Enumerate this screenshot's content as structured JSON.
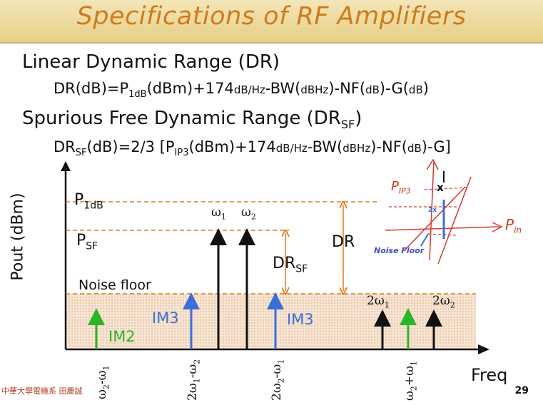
{
  "title": "Specifications of RF Amplifiers",
  "section1": {
    "heading": "Linear Dynamic Range (DR)",
    "eq_lhs": "DR(dB)",
    "eq_eq": "=P",
    "eq_sub": "1dB",
    "eq_rest1": "(dBm)+174",
    "eq_unit1": "dB/Hz",
    "eq_rest2": "-BW(",
    "eq_unit2": "dBHz",
    "eq_rest3": ")-NF(",
    "eq_unit3": "dB",
    "eq_rest4": ")-G(",
    "eq_unit4": "dB",
    "eq_end": ")"
  },
  "section2": {
    "heading_main": "Spurious Free Dynamic Range (DR",
    "heading_sub": "SF",
    "heading_end": ")",
    "eq_lhs": "DR",
    "eq_lhs_sub": "SF",
    "eq_a": "(dB)=2/3 [P",
    "eq_sub": "IP3",
    "eq_b": "(dBm)+174",
    "eq_unit1": "dB/Hz",
    "eq_c": "-BW(",
    "eq_unit2": "dBHz",
    "eq_d": ")-NF(",
    "eq_unit3": "dB",
    "eq_e": ")-G]"
  },
  "diagram": {
    "ylabel": "Pout (dBm)",
    "xlabel": "Freq",
    "p1db": "P",
    "p1db_sub": "1dB",
    "psf": "P",
    "psf_sub": "SF",
    "noise_floor": "Noise floor",
    "dr": "DR",
    "drsf": "DR",
    "drsf_sub": "SF",
    "im3_left": "IM3",
    "im3_right": "IM3",
    "im2": "IM2",
    "omega1": "ω",
    "omega1_sub": "1",
    "omega2": "ω",
    "omega2_sub": "2",
    "two_omega1": "2ω",
    "two_omega1_sub": "1",
    "two_omega2": "2ω",
    "two_omega2_sub": "2",
    "xticks": [
      {
        "a": "ω",
        "a_sub": "2",
        "b": "-ω",
        "b_sub": "1"
      },
      {
        "a": "2ω",
        "a_sub": "1",
        "b": "-ω",
        "b_sub": "2"
      },
      {
        "a": "2ω",
        "a_sub": "2",
        "b": "-ω",
        "b_sub": "1"
      },
      {
        "a": "ω",
        "a_sub": "2",
        "b": "+ω",
        "b_sub": "1"
      }
    ],
    "inset": {
      "pip3": "P",
      "pip3_sub": "IP3",
      "pin": "P",
      "pin_sub": "in",
      "x_mark": "x",
      "two_x": "2x",
      "noise_floor": "Noise Floor"
    },
    "colors": {
      "orange": "#e07b1a",
      "blue": "#3a6ed8",
      "green": "#2bb52b",
      "red": "#d23b2b",
      "fill": "#f3dcc8"
    }
  },
  "footer": {
    "institution": "中華大學電機系 田慶誠",
    "page": "29"
  }
}
